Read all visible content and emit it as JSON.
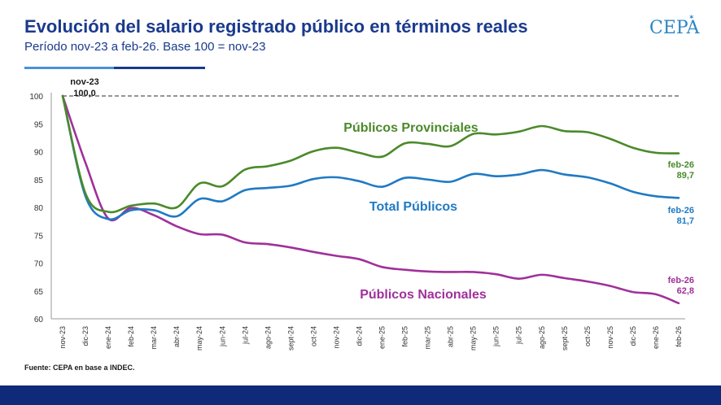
{
  "header": {
    "title": "Evolución del salario registrado público en términos reales",
    "subtitle": "Período nov-23 a feb-26. Base 100 = nov-23",
    "logo": "CEPA"
  },
  "footer": {
    "source": "Fuente: CEPA en base a INDEC."
  },
  "colors": {
    "provinciales": "#4a8a2a",
    "total": "#1f7ac4",
    "nacionales": "#a0309a",
    "base_line": "#888888",
    "title": "#1a3a8c",
    "footer_bar": "#0f2a78"
  },
  "chart_data": {
    "type": "line",
    "categories": [
      "nov-23",
      "dic-23",
      "ene-24",
      "feb-24",
      "mar-24",
      "abr-24",
      "may-24",
      "jun-24",
      "jul-24",
      "ago-24",
      "sept-24",
      "oct-24",
      "nov-24",
      "dic-24",
      "ene-25",
      "feb-25",
      "mar-25",
      "abr-25",
      "may-25",
      "jun-25",
      "jul-25",
      "ago-25",
      "sept-25",
      "oct-25",
      "nov-25",
      "dic-25",
      "ene-26",
      "feb-26"
    ],
    "ylim": [
      60,
      100
    ],
    "yticks": [
      60,
      65,
      70,
      75,
      80,
      85,
      90,
      95,
      100
    ],
    "base_line": 100,
    "series": [
      {
        "key": "provinciales",
        "name": "Públicos Provinciales",
        "values": [
          100,
          82.5,
          79.2,
          80.3,
          80.7,
          80.0,
          84.3,
          83.8,
          86.8,
          87.4,
          88.4,
          90.1,
          90.7,
          89.8,
          89.1,
          91.5,
          91.4,
          91.0,
          93.2,
          93.1,
          93.6,
          94.6,
          93.7,
          93.5,
          92.3,
          90.7,
          89.8,
          89.7
        ],
        "end_label": "feb-26",
        "end_value": "89,7"
      },
      {
        "key": "total",
        "name": "Total Públicos",
        "values": [
          100,
          82.0,
          77.9,
          79.5,
          79.5,
          78.4,
          81.5,
          81.1,
          83.1,
          83.5,
          83.9,
          85.1,
          85.4,
          84.7,
          83.7,
          85.3,
          85.0,
          84.6,
          86.0,
          85.6,
          85.9,
          86.7,
          85.9,
          85.4,
          84.3,
          82.8,
          82.0,
          81.7
        ],
        "end_label": "feb-26",
        "end_value": "81,7"
      },
      {
        "key": "nacionales",
        "name": "Públicos Nacionales",
        "values": [
          100,
          88.0,
          78.0,
          79.9,
          78.6,
          76.6,
          75.2,
          75.1,
          73.7,
          73.4,
          72.8,
          72.0,
          71.3,
          70.7,
          69.3,
          68.8,
          68.5,
          68.4,
          68.4,
          68.0,
          67.2,
          67.9,
          67.3,
          66.7,
          65.9,
          64.8,
          64.4,
          62.8
        ],
        "end_label": "feb-26",
        "end_value": "62,8"
      }
    ],
    "start_annotation": {
      "label": "nov-23",
      "value": "100,0"
    }
  }
}
